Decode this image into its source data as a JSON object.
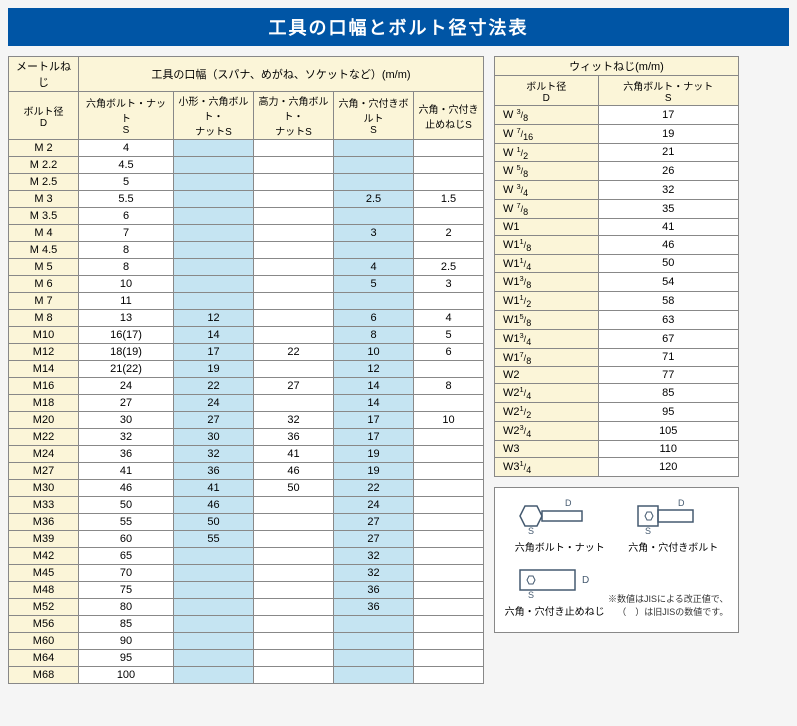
{
  "title": "工具の口幅とボルト径寸法表",
  "left": {
    "group1": "メートルねじ",
    "group2": "工具の口幅（スパナ、めがね、ソケットなど）(m/m)",
    "col0": "ボルト径\nD",
    "col1": "六角ボルト・ナット\nS",
    "col2": "小形・六角ボルト・\nナットS",
    "col3": "高力・六角ボルト・\nナットS",
    "col4": "六角・穴付きボルト\nS",
    "col5": "六角・穴付き\n止めねじS",
    "rows": [
      [
        "M 2",
        "4",
        "",
        "",
        "",
        ""
      ],
      [
        "M 2.2",
        "4.5",
        "",
        "",
        "",
        ""
      ],
      [
        "M 2.5",
        "5",
        "",
        "",
        "",
        ""
      ],
      [
        "M 3",
        "5.5",
        "",
        "",
        "2.5",
        "1.5"
      ],
      [
        "M 3.5",
        "6",
        "",
        "",
        "",
        ""
      ],
      [
        "M 4",
        "7",
        "",
        "",
        "3",
        "2"
      ],
      [
        "M 4.5",
        "8",
        "",
        "",
        "",
        ""
      ],
      [
        "M 5",
        "8",
        "",
        "",
        "4",
        "2.5"
      ],
      [
        "M 6",
        "10",
        "",
        "",
        "5",
        "3"
      ],
      [
        "M 7",
        "11",
        "",
        "",
        "",
        ""
      ],
      [
        "M 8",
        "13",
        "12",
        "",
        "6",
        "4"
      ],
      [
        "M10",
        "16(17)",
        "14",
        "",
        "8",
        "5"
      ],
      [
        "M12",
        "18(19)",
        "17",
        "22",
        "10",
        "6"
      ],
      [
        "M14",
        "21(22)",
        "19",
        "",
        "12",
        ""
      ],
      [
        "M16",
        "24",
        "22",
        "27",
        "14",
        "8"
      ],
      [
        "M18",
        "27",
        "24",
        "",
        "14",
        ""
      ],
      [
        "M20",
        "30",
        "27",
        "32",
        "17",
        "10"
      ],
      [
        "M22",
        "32",
        "30",
        "36",
        "17",
        ""
      ],
      [
        "M24",
        "36",
        "32",
        "41",
        "19",
        ""
      ],
      [
        "M27",
        "41",
        "36",
        "46",
        "19",
        ""
      ],
      [
        "M30",
        "46",
        "41",
        "50",
        "22",
        ""
      ],
      [
        "M33",
        "50",
        "46",
        "",
        "24",
        ""
      ],
      [
        "M36",
        "55",
        "50",
        "",
        "27",
        ""
      ],
      [
        "M39",
        "60",
        "55",
        "",
        "27",
        ""
      ],
      [
        "M42",
        "65",
        "",
        "",
        "32",
        ""
      ],
      [
        "M45",
        "70",
        "",
        "",
        "32",
        ""
      ],
      [
        "M48",
        "75",
        "",
        "",
        "36",
        ""
      ],
      [
        "M52",
        "80",
        "",
        "",
        "36",
        ""
      ],
      [
        "M56",
        "85",
        "",
        "",
        "",
        ""
      ],
      [
        "M60",
        "90",
        "",
        "",
        "",
        ""
      ],
      [
        "M64",
        "95",
        "",
        "",
        "",
        ""
      ],
      [
        "M68",
        "100",
        "",
        "",
        "",
        ""
      ]
    ]
  },
  "right": {
    "group": "ウィットねじ(m/m)",
    "col0": "ボルト径\nD",
    "col1": "六角ボルト・ナット\nS",
    "rows": [
      [
        "W 3/8",
        "17"
      ],
      [
        "W 7/16",
        "19"
      ],
      [
        "W 1/2",
        "21"
      ],
      [
        "W 5/8",
        "26"
      ],
      [
        "W 3/4",
        "32"
      ],
      [
        "W 7/8",
        "35"
      ],
      [
        "W1",
        "41"
      ],
      [
        "W11/8",
        "46"
      ],
      [
        "W11/4",
        "50"
      ],
      [
        "W13/8",
        "54"
      ],
      [
        "W11/2",
        "58"
      ],
      [
        "W15/8",
        "63"
      ],
      [
        "W13/4",
        "67"
      ],
      [
        "W17/8",
        "71"
      ],
      [
        "W2",
        "77"
      ],
      [
        "W21/4",
        "85"
      ],
      [
        "W21/2",
        "95"
      ],
      [
        "W23/4",
        "105"
      ],
      [
        "W3",
        "110"
      ],
      [
        "W31/4",
        "120"
      ]
    ]
  },
  "legend": {
    "items": [
      "六角ボルト・ナット",
      "六角・穴付きボルト",
      "六角・穴付き止めねじ"
    ],
    "note": "※数値はJISによる改正値で、\n（　）は旧JISの数値です。"
  },
  "colors": {
    "header": "#0055a5",
    "cream": "#fbf5d8",
    "blue": "#c5e4f2",
    "border": "#888888"
  }
}
